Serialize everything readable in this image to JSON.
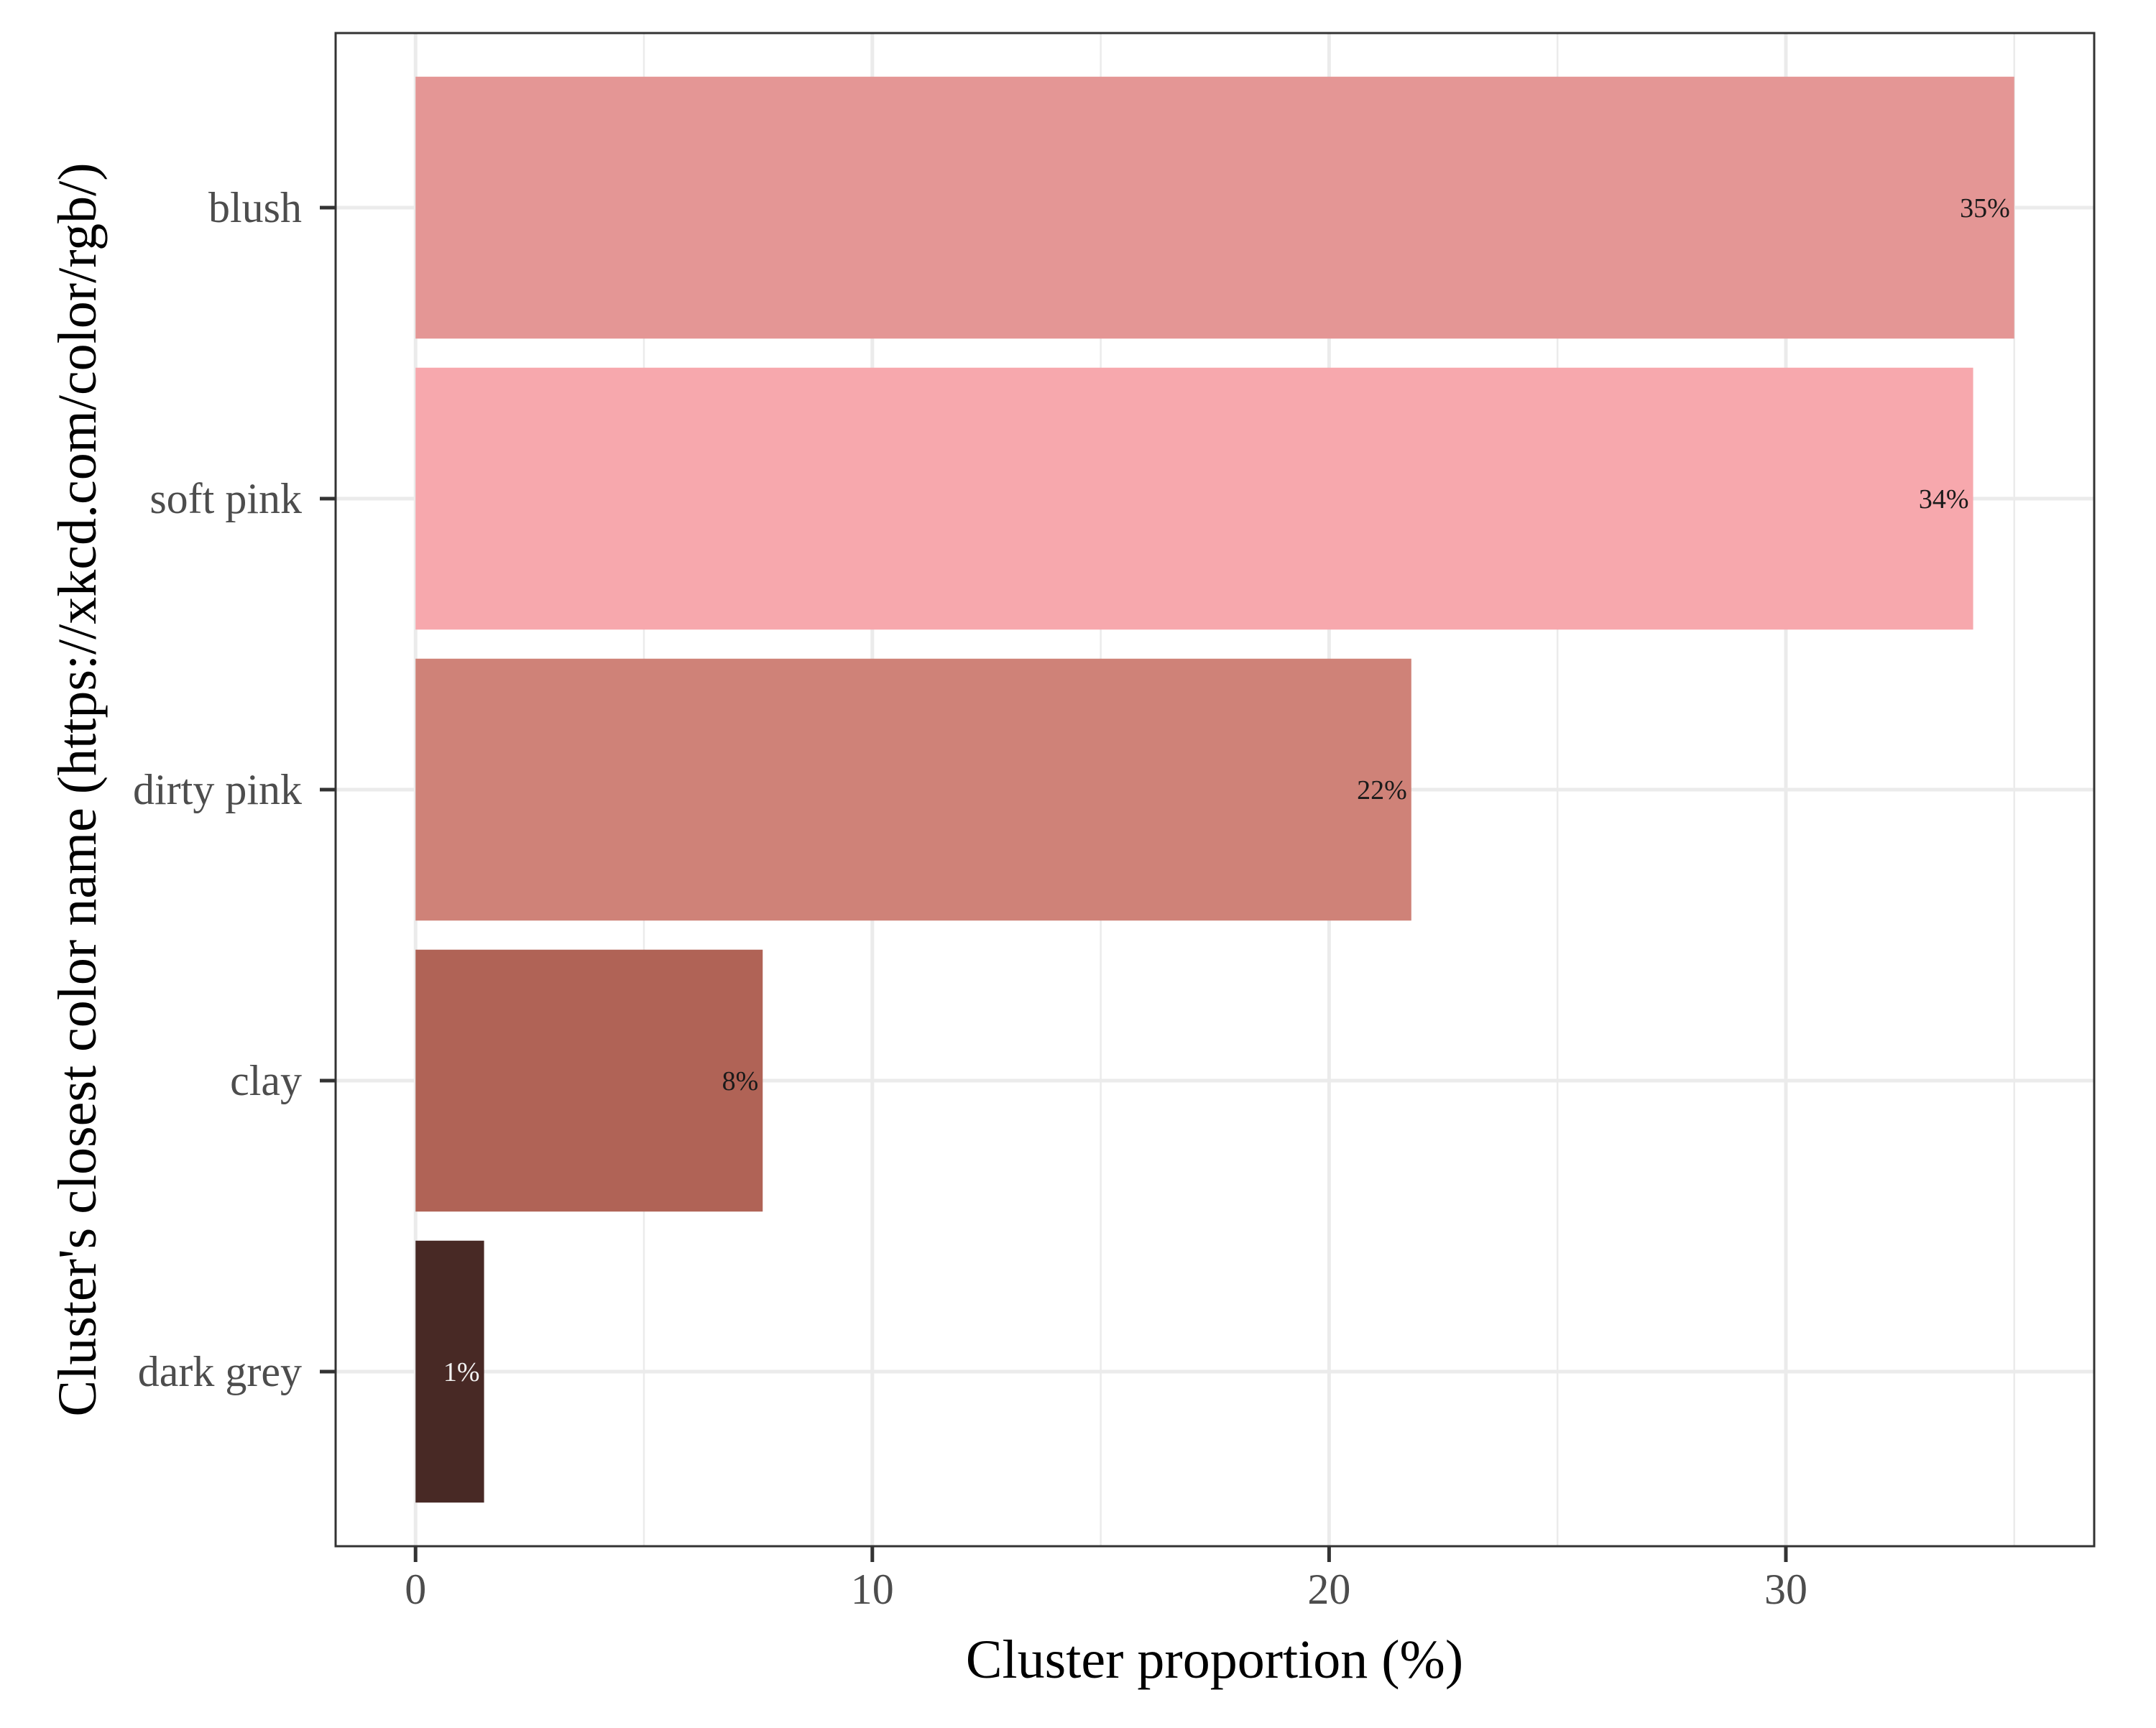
{
  "chart_data": {
    "type": "bar",
    "orientation": "horizontal",
    "title": "",
    "xlabel": "Cluster proportion (%)",
    "ylabel": "Cluster's closest color name (https://xkcd.com/color/rgb/)",
    "categories": [
      "blush",
      "soft pink",
      "dirty pink",
      "clay",
      "dark grey"
    ],
    "values": [
      35.0,
      34.1,
      21.8,
      7.6,
      1.5
    ],
    "data_labels": [
      "35%",
      "34%",
      "22%",
      "8%",
      "1%"
    ],
    "bar_colors": [
      "#e49695",
      "#f7a8ad",
      "#cf8278",
      "#b06356",
      "#482925"
    ],
    "label_colors": [
      "#1a1a1a",
      "#1a1a1a",
      "#1a1a1a",
      "#1a1a1a",
      "#f2f2f2"
    ],
    "xlim": [
      -1.75,
      36.75
    ],
    "xticks": [
      0,
      10,
      20,
      30
    ],
    "xtick_labels": [
      "0",
      "10",
      "20",
      "30"
    ],
    "grid": true,
    "legend": "none"
  }
}
